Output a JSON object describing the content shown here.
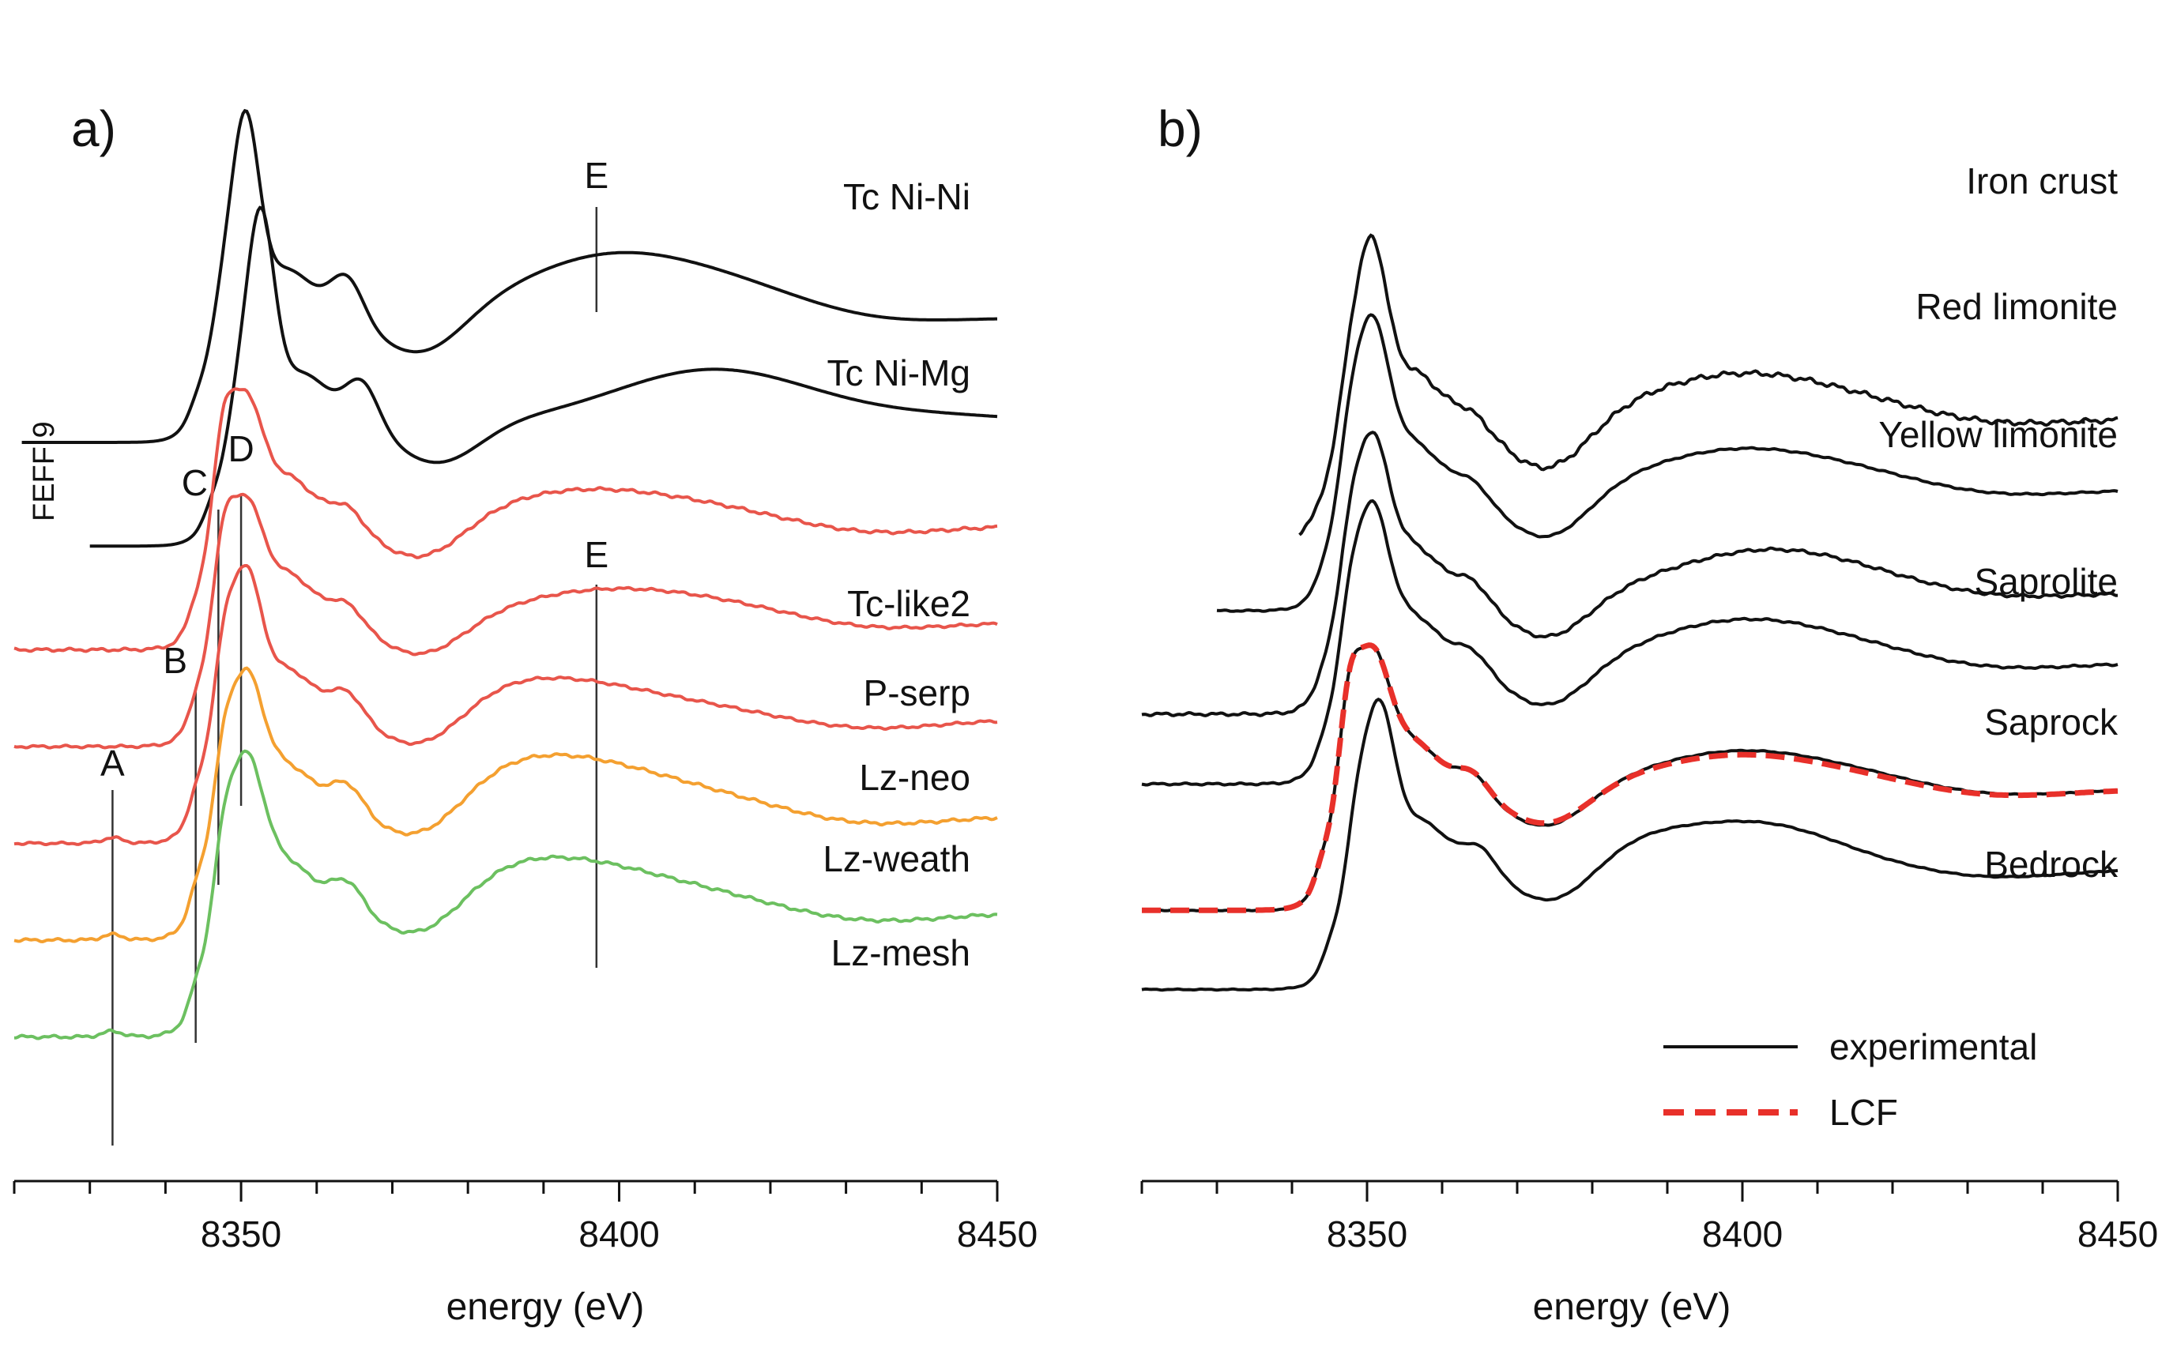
{
  "chart_data": [
    {
      "type": "line",
      "panel": "a)",
      "xlabel": "energy (eV)",
      "xlim": [
        8320,
        8450
      ],
      "xticks": [
        8350,
        8400,
        8450
      ],
      "side_label": "FEFF 9",
      "series": [
        {
          "name": "Tc Ni-Ni",
          "color": "#111111",
          "group": "FEFF 9",
          "offset": 5.2,
          "shift": 0,
          "pre": 0.0,
          "shoulders": [
            0.05,
            0.2
          ],
          "peak": 1.4,
          "peakWidth": 1.8,
          "secondary": 0.33,
          "dip": 0.3,
          "hump": 0.36,
          "humpPos": 8397,
          "tail": 0.22
        },
        {
          "name": "Tc Ni-Mg",
          "color": "#111111",
          "group": "FEFF 9",
          "offset": 4.45,
          "shift": 2,
          "pre": 0.0,
          "shoulders": [
            0.05,
            0.2
          ],
          "peak": 1.45,
          "peakWidth": 1.8,
          "secondary": 0.33,
          "dip": 0.3,
          "hump": 0.3,
          "humpPos": 8410,
          "tail": 0.18
        }
      ],
      "experimental_series": [
        {
          "name": "Tc-like2",
          "color": "#e8554b",
          "offset": 3.7
        },
        {
          "name": "P-serp",
          "color": "#e8554b",
          "offset": 3.0
        },
        {
          "name": "Lz-neo",
          "color": "#e8554b",
          "offset": 2.3
        },
        {
          "name": "Lz-weath",
          "color": "#f4a030",
          "offset": 1.6
        },
        {
          "name": "Lz-mesh",
          "color": "#6cc060",
          "offset": 0.9
        }
      ],
      "feature_markers": [
        {
          "label": "A",
          "x": 8333
        },
        {
          "label": "B",
          "x": 8344
        },
        {
          "label": "C",
          "x": 8347
        },
        {
          "label": "D",
          "x": 8350
        },
        {
          "label": "E",
          "x": 8397
        },
        {
          "label": "E",
          "x": 8397
        }
      ]
    },
    {
      "type": "line",
      "panel": "b)",
      "xlabel": "energy (eV)",
      "xlim": [
        8320,
        8450
      ],
      "xticks": [
        8350,
        8400,
        8450
      ],
      "series": [
        {
          "name": "Iron crust",
          "color": "#111111"
        },
        {
          "name": "Red limonite",
          "color": "#111111"
        },
        {
          "name": "Yellow limonite",
          "color": "#111111"
        },
        {
          "name": "Saprolite",
          "color": "#111111"
        },
        {
          "name": "Saprock",
          "color": "#111111"
        },
        {
          "name": "Bedrock",
          "color": "#111111"
        }
      ],
      "fit_series": {
        "name": "LCF",
        "color": "#e8302a",
        "fits": [
          "Saprock"
        ]
      },
      "legend": {
        "position": "bottom-right",
        "entries": [
          {
            "label": "experimental",
            "style": "solid",
            "color": "#111111"
          },
          {
            "label": "LCF",
            "style": "dashed",
            "color": "#e8302a"
          }
        ]
      }
    }
  ]
}
